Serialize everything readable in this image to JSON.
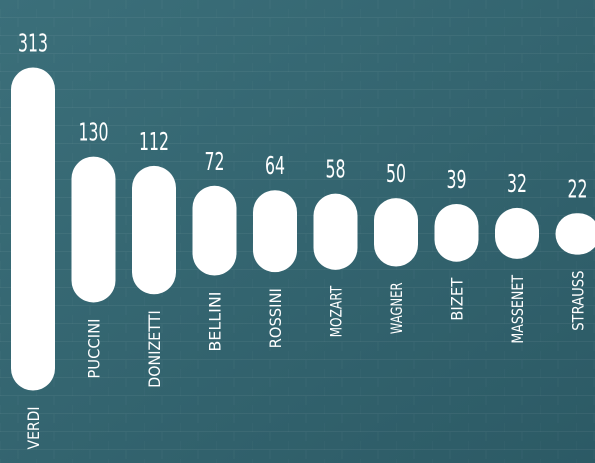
{
  "chart_data": {
    "type": "bar",
    "orientation": "vertical",
    "title": "",
    "xlabel": "",
    "ylabel": "",
    "categories": [
      "VERDI",
      "PUCCINI",
      "DONIZETTI",
      "BELLINI",
      "ROSSINI",
      "MOZART",
      "WAGNER",
      "BIZET",
      "MASSENET",
      "STRAUSS"
    ],
    "values": [
      313,
      130,
      112,
      72,
      64,
      58,
      50,
      39,
      32,
      22
    ],
    "grid": false,
    "legend": "none",
    "bar_shape": "rounded-pill",
    "bar_alignment": "centered",
    "colors": {
      "background": "#3b6f7a",
      "background_dark": "#2c5a65",
      "bar": "#ffffff",
      "text": "#ffffff"
    }
  }
}
